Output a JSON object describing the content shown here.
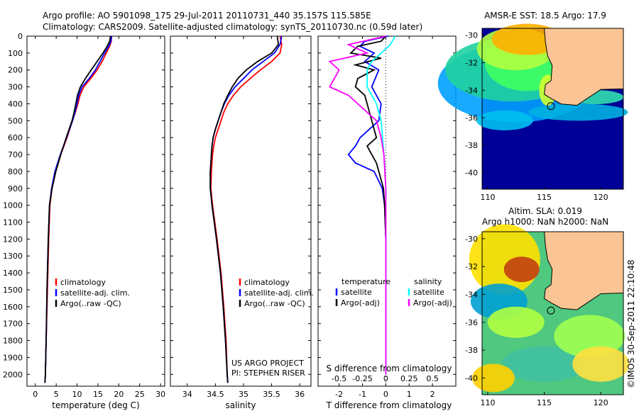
{
  "header": {
    "line1": "Argo profile: AO 5901098_175 29-Jul-2011 20110731_440 35.157S 115.585E",
    "line2": "Climatology: CARS2009. Satellite-adjusted climatology: synTS_20110730.nc (0.59d later)"
  },
  "colors": {
    "climatology": "#ff0000",
    "satellite": "#0000ff",
    "argo": "#000000",
    "sat_sal": "#00ffff",
    "argo_sal": "#ff00ff",
    "land": "#fbc494",
    "ocean_deep": "#000099"
  },
  "chart_data": [
    {
      "type": "line",
      "id": "temperature",
      "xlabel": "temperature (deg C)",
      "ylabel": "",
      "xlim": [
        -2,
        31
      ],
      "ylim": [
        2070,
        0
      ],
      "xticks": [
        "0",
        "5",
        "10",
        "15",
        "20",
        "25",
        "30"
      ],
      "yticks": [
        "0",
        "100",
        "200",
        "300",
        "400",
        "500",
        "600",
        "700",
        "800",
        "900",
        "1000",
        "1100",
        "1200",
        "1300",
        "1400",
        "1500",
        "1600",
        "1700",
        "1800",
        "1900",
        "2000"
      ],
      "legend": [
        "climatology",
        "satellite-adj. clim.",
        "Argo(..raw -QC)"
      ],
      "series": [
        {
          "name": "climatology",
          "color": "#ff0000",
          "depth": [
            0,
            30,
            60,
            100,
            150,
            200,
            250,
            300,
            350,
            400,
            450,
            500,
            600,
            700,
            800,
            900,
            1000,
            1200,
            1500,
            1800,
            2000,
            2050
          ],
          "values": [
            18.2,
            18.2,
            17.8,
            17.0,
            16.0,
            14.8,
            13.3,
            11.6,
            10.7,
            10.2,
            9.6,
            8.9,
            7.6,
            6.1,
            4.9,
            4.0,
            3.5,
            3.2,
            2.9,
            2.6,
            2.4,
            2.3
          ]
        },
        {
          "name": "satellite-adj. clim.",
          "color": "#0000ff",
          "depth": [
            0,
            30,
            60,
            100,
            150,
            200,
            250,
            300,
            350,
            400,
            450,
            500,
            600,
            700,
            800,
            900,
            1000,
            1200,
            1500,
            1800,
            2000,
            2050
          ],
          "values": [
            18.3,
            18.1,
            17.6,
            16.6,
            15.5,
            14.4,
            12.9,
            11.2,
            10.4,
            10.0,
            9.5,
            8.9,
            7.5,
            6.0,
            4.7,
            3.9,
            3.4,
            3.1,
            2.8,
            2.6,
            2.4,
            2.3
          ]
        },
        {
          "name": "Argo(..raw -QC)",
          "color": "#000000",
          "depth": [
            0,
            30,
            60,
            100,
            150,
            200,
            250,
            300,
            350,
            400,
            450,
            500,
            600,
            700,
            800,
            900,
            1000,
            1200,
            1500,
            1800,
            2000,
            2050
          ],
          "values": [
            18.0,
            17.8,
            17.2,
            16.2,
            14.8,
            13.4,
            12.0,
            10.8,
            10.1,
            9.7,
            9.3,
            8.8,
            7.4,
            6.1,
            4.9,
            4.0,
            3.4,
            3.1,
            2.8,
            2.6,
            2.4,
            2.3
          ]
        }
      ]
    },
    {
      "type": "line",
      "id": "salinity",
      "xlabel": "salinity",
      "xlim": [
        33.7,
        36.2
      ],
      "ylim": [
        2070,
        0
      ],
      "xticks": [
        "34",
        "34.5",
        "35",
        "35.5",
        "36"
      ],
      "legend": [
        "climatology",
        "satellite-adj. clim.",
        "Argo(..raw -QC)"
      ],
      "annotation": [
        "US ARGO PROJECT",
        "PI: STEPHEN RISER"
      ],
      "series": [
        {
          "name": "climatology",
          "color": "#ff0000",
          "depth": [
            0,
            50,
            100,
            150,
            200,
            250,
            300,
            350,
            400,
            450,
            500,
            550,
            600,
            650,
            700,
            750,
            800,
            900,
            1000,
            1200,
            1400,
            1600,
            1800,
            2000,
            2050
          ],
          "values": [
            35.65,
            35.68,
            35.65,
            35.5,
            35.3,
            35.12,
            34.95,
            34.82,
            34.72,
            34.65,
            34.6,
            34.55,
            34.5,
            34.47,
            34.45,
            34.44,
            34.43,
            34.42,
            34.45,
            34.53,
            34.6,
            34.65,
            34.69,
            34.71,
            34.72
          ]
        },
        {
          "name": "satellite-adj. clim.",
          "color": "#0000ff",
          "depth": [
            0,
            50,
            100,
            150,
            200,
            250,
            300,
            350,
            400,
            450,
            500,
            550,
            600,
            650,
            700,
            750,
            800,
            900,
            1000,
            1200,
            1400,
            1600,
            1800,
            2000,
            2050
          ],
          "values": [
            35.68,
            35.65,
            35.55,
            35.35,
            35.15,
            35.0,
            34.85,
            34.74,
            34.66,
            34.6,
            34.55,
            34.5,
            34.46,
            34.44,
            34.43,
            34.42,
            34.41,
            34.41,
            34.44,
            34.52,
            34.59,
            34.64,
            34.68,
            34.71,
            34.72
          ]
        },
        {
          "name": "Argo(..raw -QC)",
          "color": "#000000",
          "depth": [
            0,
            50,
            100,
            150,
            200,
            250,
            300,
            350,
            400,
            450,
            500,
            550,
            600,
            650,
            700,
            750,
            800,
            900,
            1000,
            1200,
            1400,
            1600,
            1800,
            2000,
            2050
          ],
          "values": [
            35.6,
            35.62,
            35.5,
            35.25,
            35.05,
            34.9,
            34.8,
            34.72,
            34.65,
            34.6,
            34.55,
            34.5,
            34.46,
            34.44,
            34.43,
            34.42,
            34.41,
            34.41,
            34.44,
            34.52,
            34.59,
            34.64,
            34.68,
            34.71,
            34.72
          ]
        }
      ]
    },
    {
      "type": "line",
      "id": "difference",
      "xlabel": "T difference from climatology",
      "xlabel_top": "S difference from climatology",
      "xlim": [
        -2.9,
        3.0
      ],
      "ylim": [
        2070,
        0
      ],
      "xticks": [
        "-2",
        "-1",
        "0",
        "1",
        "2"
      ],
      "sticks": [
        "-0.5",
        "-0.25",
        "0",
        "0.25",
        "0.5"
      ],
      "legend_titles": [
        "temperature",
        "salinity"
      ],
      "legend": [
        "satellite",
        "Argo(-adj)",
        "satellite",
        "Argo(-adj)"
      ],
      "series": [
        {
          "name": "satellite",
          "quantity": "temperature",
          "color": "#0000ff",
          "depth": [
            0,
            30,
            60,
            100,
            150,
            200,
            300,
            400,
            500,
            600,
            650,
            700,
            750,
            800,
            900,
            1000,
            1200,
            1500,
            2000
          ],
          "values": [
            0.1,
            -0.9,
            -1.1,
            -0.5,
            -0.9,
            -0.3,
            -0.6,
            -0.2,
            -0.3,
            -1.1,
            -1.3,
            -1.6,
            -1.3,
            -0.5,
            -0.15,
            -0.05,
            0,
            0,
            0
          ]
        },
        {
          "name": "Argo(-adj)",
          "quantity": "temperature",
          "color": "#000000",
          "depth": [
            0,
            30,
            60,
            100,
            130,
            170,
            200,
            250,
            300,
            350,
            400,
            500,
            600,
            650,
            700,
            750,
            800,
            900,
            1000,
            1200,
            1500,
            2000
          ],
          "values": [
            0,
            -0.2,
            -1.2,
            -1.5,
            -0.2,
            -1.3,
            -0.5,
            -1.2,
            -1.3,
            -0.9,
            -0.8,
            -0.6,
            -0.4,
            -0.8,
            -0.6,
            -0.4,
            -0.3,
            -0.1,
            -0.05,
            0,
            0,
            0
          ]
        },
        {
          "name": "satellite",
          "quantity": "salinity",
          "color": "#00ffff",
          "depth": [
            0,
            50,
            100,
            150,
            200,
            300,
            400,
            500,
            700,
            900,
            1000,
            1500,
            2000
          ],
          "values": [
            0.1,
            0.05,
            -0.05,
            -0.15,
            -0.2,
            -0.2,
            -0.1,
            -0.05,
            -0.02,
            0,
            0,
            0,
            0
          ]
        },
        {
          "name": "Argo(-adj)",
          "quantity": "salinity",
          "color": "#ff00ff",
          "depth": [
            0,
            50,
            100,
            150,
            200,
            250,
            300,
            350,
            400,
            500,
            600,
            700,
            900,
            1000,
            1500,
            2000
          ],
          "values": [
            0,
            -0.4,
            -0.2,
            -0.6,
            -0.5,
            -0.55,
            -0.6,
            -0.4,
            -0.3,
            -0.1,
            -0.05,
            -0.02,
            0,
            0,
            0,
            0
          ]
        }
      ]
    },
    {
      "type": "heatmap",
      "id": "sst_map",
      "title": "AMSR-E SST: 18.5 Argo: 17.9",
      "xticks": [
        "110",
        "115",
        "120"
      ],
      "yticks": [
        "-30",
        "-32",
        "-34",
        "-36",
        "-38",
        "-40"
      ],
      "xlim": [
        109.5,
        122.0
      ],
      "ylim": [
        -41.2,
        -29.5
      ],
      "marker": {
        "lon": 115.585,
        "lat": -35.157
      }
    },
    {
      "type": "heatmap",
      "id": "sla_map",
      "title": "Altim. SLA: 0.019",
      "subtitle": "Argo h1000: NaN h2000: NaN",
      "xticks": [
        "110",
        "115",
        "120"
      ],
      "yticks": [
        "-30",
        "-32",
        "-34",
        "-36",
        "-38",
        "-40"
      ],
      "xlim": [
        109.5,
        122.0
      ],
      "ylim": [
        -41.2,
        -29.5
      ],
      "marker": {
        "lon": 115.585,
        "lat": -35.157
      }
    }
  ],
  "watermark": "©IMOS 30-Sep-2011 22:10:48"
}
